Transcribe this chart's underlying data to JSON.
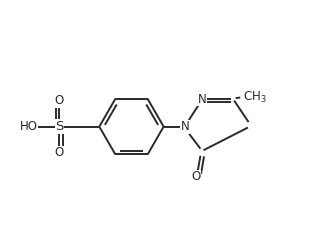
{
  "background": "#ffffff",
  "line_color": "#2a2a2a",
  "line_width": 1.4,
  "font_size": 8.5,
  "figsize": [
    3.12,
    2.41
  ],
  "dpi": 100,
  "xlim": [
    0.0,
    10.0
  ],
  "ylim": [
    0.5,
    7.5
  ]
}
